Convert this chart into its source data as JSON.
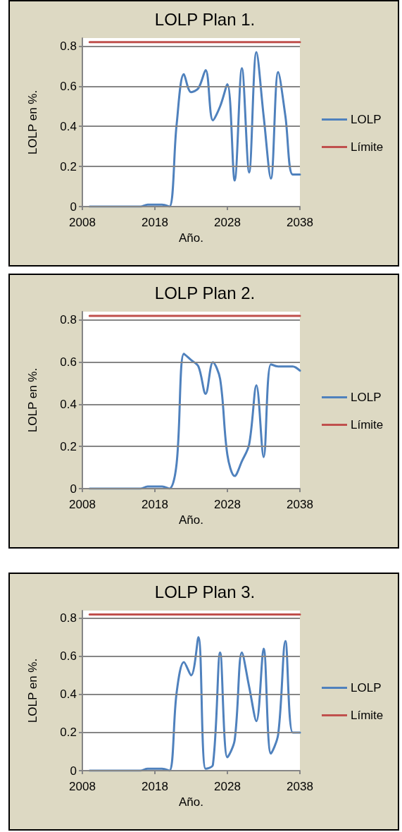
{
  "chart_data": [
    {
      "type": "line",
      "title": "LOLP Plan 1.",
      "xlabel": "Año.",
      "ylabel": "LOLP en %.",
      "x": [
        2009,
        2010,
        2011,
        2012,
        2013,
        2014,
        2015,
        2016,
        2017,
        2018,
        2019,
        2020,
        2021,
        2022,
        2023,
        2024,
        2025,
        2026,
        2027,
        2028,
        2029,
        2030,
        2031,
        2032,
        2033,
        2034,
        2035,
        2036,
        2037,
        2038
      ],
      "xlim": [
        2008,
        2038
      ],
      "xticks": [
        2008,
        2018,
        2028,
        2038
      ],
      "ylim": [
        0,
        0.84
      ],
      "yticks": [
        0,
        0.2,
        0.4,
        0.6,
        0.8
      ],
      "grid": "y",
      "legend": "right",
      "marker": "none",
      "line_style": "solid",
      "series": [
        {
          "name": "LOLP",
          "color": "#4f81bd",
          "values": [
            0,
            0,
            0,
            0,
            0,
            0,
            0,
            0,
            0.01,
            0.01,
            0.01,
            0,
            0.41,
            0.66,
            0.57,
            0.59,
            0.68,
            0.43,
            0.5,
            0.61,
            0.13,
            0.69,
            0.17,
            0.77,
            0.45,
            0.14,
            0.67,
            0.45,
            0.16,
            0.16
          ]
        },
        {
          "name": "Límite",
          "color": "#c0504d",
          "values": [
            0.82,
            0.82,
            0.82,
            0.82,
            0.82,
            0.82,
            0.82,
            0.82,
            0.82,
            0.82,
            0.82,
            0.82,
            0.82,
            0.82,
            0.82,
            0.82,
            0.82,
            0.82,
            0.82,
            0.82,
            0.82,
            0.82,
            0.82,
            0.82,
            0.82,
            0.82,
            0.82,
            0.82,
            0.82,
            0.82
          ]
        }
      ]
    },
    {
      "type": "line",
      "title": "LOLP Plan 2.",
      "xlabel": "Año.",
      "ylabel": "LOLP en %.",
      "x": [
        2009,
        2010,
        2011,
        2012,
        2013,
        2014,
        2015,
        2016,
        2017,
        2018,
        2019,
        2020,
        2021,
        2022,
        2023,
        2024,
        2025,
        2026,
        2027,
        2028,
        2029,
        2030,
        2031,
        2032,
        2033,
        2034,
        2035,
        2036,
        2037,
        2038
      ],
      "xlim": [
        2008,
        2038
      ],
      "xticks": [
        2008,
        2018,
        2028,
        2038
      ],
      "ylim": [
        0,
        0.84
      ],
      "yticks": [
        0,
        0.2,
        0.4,
        0.6,
        0.8
      ],
      "grid": "y",
      "legend": "right",
      "marker": "none",
      "line_style": "solid",
      "series": [
        {
          "name": "LOLP",
          "color": "#4f81bd",
          "values": [
            0,
            0,
            0,
            0,
            0,
            0,
            0,
            0,
            0.01,
            0.01,
            0.01,
            0,
            0.12,
            0.64,
            0.61,
            0.58,
            0.45,
            0.6,
            0.52,
            0.16,
            0.06,
            0.13,
            0.21,
            0.49,
            0.15,
            0.59,
            0.58,
            0.58,
            0.58,
            0.56
          ]
        },
        {
          "name": "Límite",
          "color": "#c0504d",
          "values": [
            0.82,
            0.82,
            0.82,
            0.82,
            0.82,
            0.82,
            0.82,
            0.82,
            0.82,
            0.82,
            0.82,
            0.82,
            0.82,
            0.82,
            0.82,
            0.82,
            0.82,
            0.82,
            0.82,
            0.82,
            0.82,
            0.82,
            0.82,
            0.82,
            0.82,
            0.82,
            0.82,
            0.82,
            0.82,
            0.82
          ]
        }
      ]
    },
    {
      "type": "line",
      "title": "LOLP Plan 3.",
      "xlabel": "Año.",
      "ylabel": "LOLP en %.",
      "x": [
        2009,
        2010,
        2011,
        2012,
        2013,
        2014,
        2015,
        2016,
        2017,
        2018,
        2019,
        2020,
        2021,
        2022,
        2023,
        2024,
        2025,
        2026,
        2027,
        2028,
        2029,
        2030,
        2031,
        2032,
        2033,
        2034,
        2035,
        2036,
        2037,
        2038
      ],
      "xlim": [
        2008,
        2038
      ],
      "xticks": [
        2008,
        2018,
        2028,
        2038
      ],
      "ylim": [
        0,
        0.84
      ],
      "yticks": [
        0,
        0.2,
        0.4,
        0.6,
        0.8
      ],
      "grid": "y",
      "legend": "right",
      "marker": "none",
      "line_style": "solid",
      "series": [
        {
          "name": "LOLP",
          "color": "#4f81bd",
          "values": [
            0,
            0,
            0,
            0,
            0,
            0,
            0,
            0,
            0.01,
            0.01,
            0.01,
            0,
            0.41,
            0.57,
            0.5,
            0.7,
            0.01,
            0.03,
            0.62,
            0.07,
            0.16,
            0.62,
            0.44,
            0.26,
            0.64,
            0.09,
            0.19,
            0.68,
            0.2,
            0.2
          ]
        },
        {
          "name": "Límite",
          "color": "#c0504d",
          "values": [
            0.82,
            0.82,
            0.82,
            0.82,
            0.82,
            0.82,
            0.82,
            0.82,
            0.82,
            0.82,
            0.82,
            0.82,
            0.82,
            0.82,
            0.82,
            0.82,
            0.82,
            0.82,
            0.82,
            0.82,
            0.82,
            0.82,
            0.82,
            0.82,
            0.82,
            0.82,
            0.82,
            0.82,
            0.82,
            0.82
          ]
        }
      ]
    }
  ]
}
